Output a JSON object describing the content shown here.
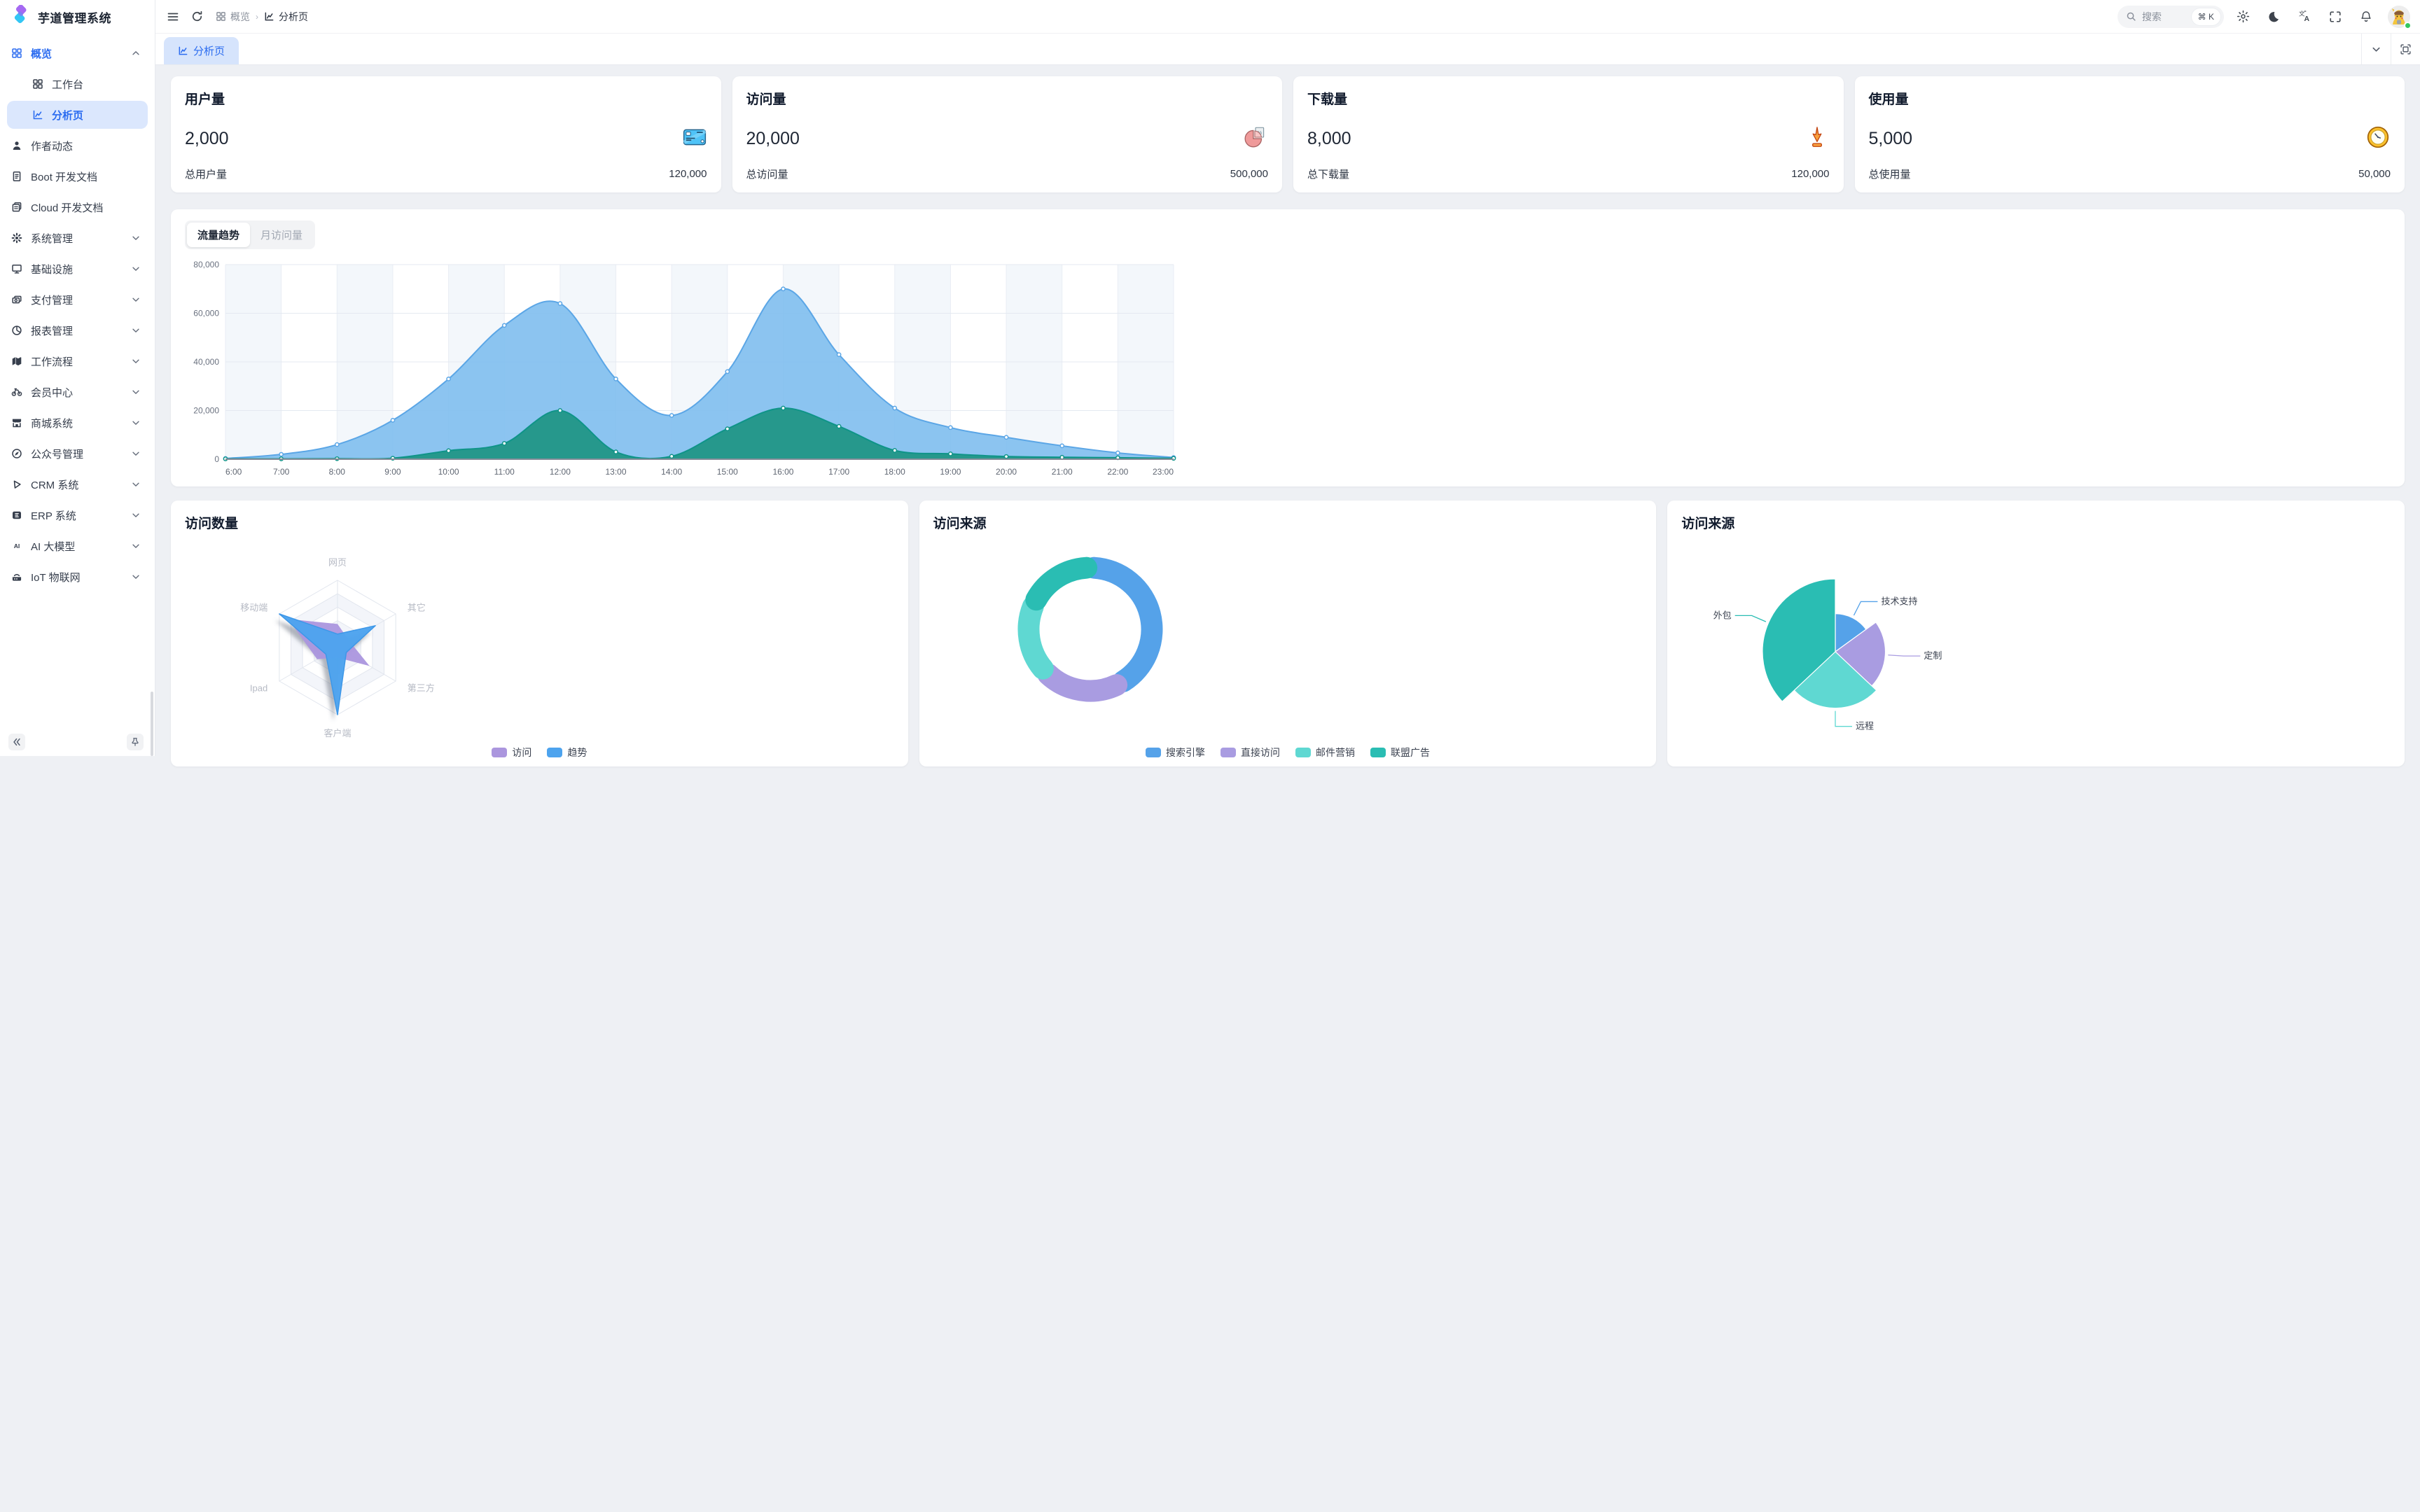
{
  "app": {
    "title": "芋道管理系统"
  },
  "colors": {
    "accent": "#2b6cf0",
    "active_tab_bg": "#d6e4fc",
    "palette_blue": "#55a2e9",
    "palette_purple": "#a99ce1",
    "palette_cyan": "#5fd8d2",
    "palette_teal": "#2abdb3"
  },
  "sidebar": {
    "items": [
      {
        "id": "overview",
        "icon": "grid-icon",
        "label": "概览",
        "style": "blue",
        "chevron": "up"
      },
      {
        "id": "workbench",
        "icon": "grid-icon",
        "label": "工作台",
        "indent": true
      },
      {
        "id": "analysis",
        "icon": "chart-icon",
        "label": "分析页",
        "indent": true,
        "style": "active"
      },
      {
        "id": "author",
        "icon": "user-icon",
        "label": "作者动态"
      },
      {
        "id": "boot-doc",
        "icon": "doc-icon",
        "label": "Boot 开发文档"
      },
      {
        "id": "cloud-doc",
        "icon": "docs-icon",
        "label": "Cloud 开发文档"
      },
      {
        "id": "system",
        "icon": "gear-icon",
        "label": "系统管理",
        "chevron": "down"
      },
      {
        "id": "infra",
        "icon": "monitor-icon",
        "label": "基础设施",
        "chevron": "down"
      },
      {
        "id": "payment",
        "icon": "payment-icon",
        "label": "支付管理",
        "chevron": "down"
      },
      {
        "id": "report",
        "icon": "pie-icon",
        "label": "报表管理",
        "chevron": "down"
      },
      {
        "id": "workflow",
        "icon": "workflow-icon",
        "label": "工作流程",
        "chevron": "down"
      },
      {
        "id": "member",
        "icon": "bicycle-icon",
        "label": "会员中心",
        "chevron": "down"
      },
      {
        "id": "mall",
        "icon": "shop-icon",
        "label": "商城系统",
        "chevron": "down"
      },
      {
        "id": "mp",
        "icon": "compass-icon",
        "label": "公众号管理",
        "chevron": "down"
      },
      {
        "id": "crm",
        "icon": "triangle-icon",
        "label": "CRM 系统",
        "chevron": "down"
      },
      {
        "id": "erp",
        "icon": "erp-icon",
        "label": "ERP 系统",
        "chevron": "down"
      },
      {
        "id": "ai",
        "icon": "ai-icon",
        "label": "AI 大模型",
        "chevron": "down"
      },
      {
        "id": "iot",
        "icon": "iot-icon",
        "label": "IoT 物联网",
        "chevron": "down"
      }
    ]
  },
  "header": {
    "breadcrumb": [
      {
        "icon": "grid-icon",
        "label": "概览"
      },
      {
        "icon": "chart-icon",
        "label": "分析页"
      }
    ],
    "search": {
      "placeholder": "搜索",
      "shortcut": "⌘ K"
    }
  },
  "tabbar": {
    "active_tab": "分析页"
  },
  "stats": [
    {
      "title": "用户量",
      "value": "2,000",
      "icon": "credit-card-icon",
      "total_label": "总用户量",
      "total_value": "120,000"
    },
    {
      "title": "访问量",
      "value": "20,000",
      "icon": "pie-chart-icon",
      "total_label": "总访问量",
      "total_value": "500,000"
    },
    {
      "title": "下载量",
      "value": "8,000",
      "icon": "download-icon",
      "total_label": "总下载量",
      "total_value": "120,000"
    },
    {
      "title": "使用量",
      "value": "5,000",
      "icon": "clock-icon",
      "total_label": "总使用量",
      "total_value": "50,000"
    }
  ],
  "trend_card": {
    "tabs": [
      "流量趋势",
      "月访问量"
    ],
    "active_tab": "流量趋势"
  },
  "cards": {
    "visits_title": "访问数量",
    "source_donut_title": "访问来源",
    "source_rose_title": "访问来源"
  },
  "chart_data": [
    {
      "id": "traffic-trend",
      "type": "area",
      "x": [
        "6:00",
        "7:00",
        "8:00",
        "9:00",
        "10:00",
        "11:00",
        "12:00",
        "13:00",
        "14:00",
        "15:00",
        "16:00",
        "17:00",
        "18:00",
        "19:00",
        "20:00",
        "21:00",
        "22:00",
        "23:00"
      ],
      "ylim": [
        0,
        80000
      ],
      "yticks": [
        0,
        20000,
        40000,
        60000,
        80000
      ],
      "grid": true,
      "series": [
        {
          "name": "series-blue",
          "color": "#5ba6e6",
          "fill": "rgba(127,190,238,0.9)",
          "values": [
            300,
            2000,
            6000,
            16000,
            33000,
            55000,
            64000,
            33000,
            18000,
            36000,
            70000,
            43000,
            21000,
            13000,
            9000,
            5500,
            2600,
            700
          ]
        },
        {
          "name": "series-green",
          "color": "#0f9488",
          "fill": "rgba(33,150,134,0.95)",
          "values": [
            150,
            150,
            200,
            400,
            3500,
            6500,
            20000,
            3000,
            1200,
            12500,
            21000,
            13500,
            3600,
            2200,
            1100,
            800,
            600,
            350
          ]
        }
      ]
    },
    {
      "id": "visit-count-radar",
      "type": "radar",
      "indicators": [
        "网页",
        "其它",
        "第三方",
        "客户端",
        "Ipad",
        "移动端"
      ],
      "max": 100,
      "levels": 5,
      "legend_position": "bottom",
      "series": [
        {
          "name": "访问",
          "color": "#ab96de",
          "values": [
            35,
            20,
            55,
            15,
            35,
            85
          ]
        },
        {
          "name": "趋势",
          "color": "#4da3ee",
          "values": [
            20,
            65,
            15,
            100,
            20,
            100
          ]
        }
      ]
    },
    {
      "id": "visit-source-donut",
      "type": "pie",
      "variant": "donut",
      "labels": [
        "搜索引擎",
        "直接访问",
        "邮件营销",
        "联盟广告"
      ],
      "values": [
        42,
        21,
        19,
        18
      ],
      "colors": [
        "#55a2e9",
        "#a99ce1",
        "#5fd8d2",
        "#2abdb3"
      ],
      "legend_position": "bottom"
    },
    {
      "id": "visit-source-rose",
      "type": "pie",
      "variant": "rose",
      "labels": [
        "技术支持",
        "定制",
        "远程",
        "外包"
      ],
      "values": [
        15,
        22,
        26,
        37
      ],
      "colors": [
        "#55a2e9",
        "#a99ce1",
        "#5fd8d2",
        "#2abdb3"
      ],
      "labels_outside": true
    }
  ]
}
